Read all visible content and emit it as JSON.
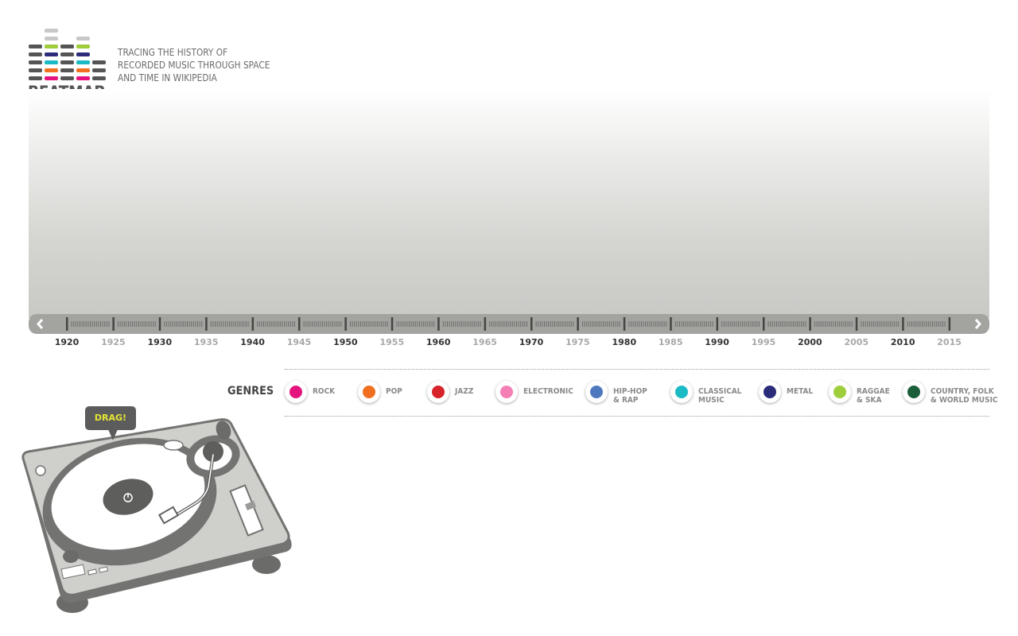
{
  "brand": {
    "name": "BEATMAP",
    "tagline": [
      "TRACING THE HISTORY OF",
      "RECORDED MUSIC THROUGH SPACE",
      "AND TIME IN WIKIPEDIA"
    ]
  },
  "timeline": {
    "prev_icon": "chevron-left-icon",
    "next_icon": "chevron-right-icon",
    "years": [
      "1920",
      "1925",
      "1930",
      "1935",
      "1940",
      "1945",
      "1950",
      "1955",
      "1960",
      "1965",
      "1970",
      "1975",
      "1980",
      "1985",
      "1990",
      "1995",
      "2000",
      "2005",
      "2010",
      "2015"
    ]
  },
  "genres": {
    "title": "GENRES",
    "items": [
      {
        "label": [
          "ROCK"
        ],
        "color": "#e5137d"
      },
      {
        "label": [
          "POP"
        ],
        "color": "#f07020"
      },
      {
        "label": [
          "JAZZ"
        ],
        "color": "#d7232a"
      },
      {
        "label": [
          "ELECTRONIC"
        ],
        "color": "#f37fb5"
      },
      {
        "label": [
          "HIP-HOP",
          "& RAP"
        ],
        "color": "#4e79be"
      },
      {
        "label": [
          "CLASSICAL",
          "MUSIC"
        ],
        "color": "#1bbac4"
      },
      {
        "label": [
          "METAL"
        ],
        "color": "#2c2b7a"
      },
      {
        "label": [
          "RAGGAE",
          "& SKA"
        ],
        "color": "#9fcd3c"
      },
      {
        "label": [
          "COUNTRY, FOLK",
          "& WORLD MUSIC"
        ],
        "color": "#1c5e3a"
      }
    ]
  },
  "turntable": {
    "drag_label": "DRAG!",
    "drag_color": "#e6e633"
  }
}
